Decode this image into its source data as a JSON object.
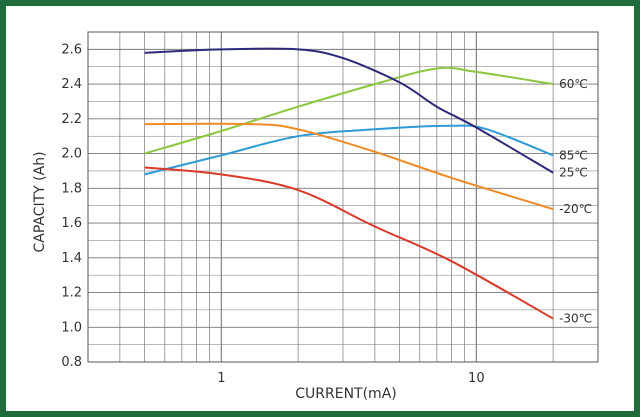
{
  "chart_data": {
    "type": "line",
    "title": "",
    "xlabel": "CURRENT(mA)",
    "ylabel": "CAPACITY (Ah)",
    "x_scale": "log",
    "xlim": [
      0.3,
      30
    ],
    "ylim": [
      0.8,
      2.7
    ],
    "grid": true,
    "x_ticks": [
      {
        "value": 1,
        "label": "1"
      },
      {
        "value": 10,
        "label": "10"
      }
    ],
    "y_ticks": [
      {
        "value": 0.8,
        "label": "0.8"
      },
      {
        "value": 1.0,
        "label": "1.0"
      },
      {
        "value": 1.2,
        "label": "1.2"
      },
      {
        "value": 1.4,
        "label": "1.4"
      },
      {
        "value": 1.6,
        "label": "1.6"
      },
      {
        "value": 1.8,
        "label": "1.8"
      },
      {
        "value": 2.0,
        "label": "2.0"
      },
      {
        "value": 2.2,
        "label": "2.2"
      },
      {
        "value": 2.4,
        "label": "2.4"
      },
      {
        "value": 2.6,
        "label": "2.6"
      }
    ],
    "series": [
      {
        "name": "60℃",
        "color": "#8cc63f",
        "points": [
          [
            0.5,
            2.0
          ],
          [
            1,
            2.13
          ],
          [
            2,
            2.27
          ],
          [
            4,
            2.4
          ],
          [
            7,
            2.49
          ],
          [
            10,
            2.47
          ],
          [
            20,
            2.4
          ]
        ]
      },
      {
        "name": "85℃",
        "color": "#2e9bd6",
        "points": [
          [
            0.5,
            1.88
          ],
          [
            1,
            1.99
          ],
          [
            2,
            2.1
          ],
          [
            4,
            2.14
          ],
          [
            8,
            2.16
          ],
          [
            11,
            2.14
          ],
          [
            20,
            1.99
          ]
        ]
      },
      {
        "name": "25℃",
        "color": "#2e2a7a",
        "points": [
          [
            0.5,
            2.58
          ],
          [
            1,
            2.6
          ],
          [
            2,
            2.6
          ],
          [
            3,
            2.55
          ],
          [
            5,
            2.41
          ],
          [
            7,
            2.27
          ],
          [
            10,
            2.15
          ],
          [
            20,
            1.89
          ]
        ]
      },
      {
        "name": "-20℃",
        "color": "#f08a24",
        "points": [
          [
            0.5,
            2.17
          ],
          [
            1.3,
            2.17
          ],
          [
            2,
            2.14
          ],
          [
            4,
            2.01
          ],
          [
            8,
            1.86
          ],
          [
            20,
            1.68
          ]
        ]
      },
      {
        "name": "-30℃",
        "color": "#d93a2b",
        "points": [
          [
            0.5,
            1.92
          ],
          [
            1,
            1.88
          ],
          [
            2,
            1.79
          ],
          [
            4,
            1.58
          ],
          [
            8,
            1.38
          ],
          [
            20,
            1.05
          ]
        ]
      }
    ]
  }
}
